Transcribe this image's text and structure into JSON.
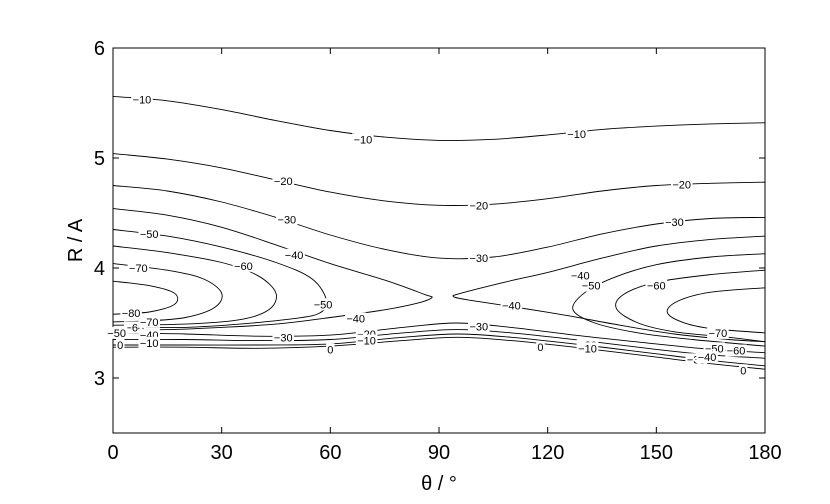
{
  "chart_data": {
    "type": "contour",
    "xlabel": "θ / °",
    "ylabel": "R / A",
    "xlim": [
      0,
      180
    ],
    "ylim": [
      2.5,
      6
    ],
    "xticks": [
      "0",
      "30",
      "60",
      "90",
      "120",
      "150",
      "180"
    ],
    "yticks": [
      "3",
      "4",
      "5",
      "6"
    ],
    "grid": false,
    "contours": [
      {
        "level": -10,
        "label": "−10",
        "segments": [
          [
            [
              0,
              5.56
            ],
            [
              15,
              5.52
            ],
            [
              30,
              5.44
            ],
            [
              45,
              5.34
            ],
            [
              60,
              5.25
            ],
            [
              75,
              5.19
            ],
            [
              90,
              5.16
            ],
            [
              105,
              5.17
            ],
            [
              120,
              5.21
            ],
            [
              135,
              5.26
            ],
            [
              150,
              5.29
            ],
            [
              165,
              5.31
            ],
            [
              180,
              5.32
            ]
          ]
        ]
      },
      {
        "level": -20,
        "label": "−20",
        "segments": [
          [
            [
              0,
              5.04
            ],
            [
              15,
              4.99
            ],
            [
              30,
              4.91
            ],
            [
              45,
              4.8
            ],
            [
              60,
              4.69
            ],
            [
              75,
              4.61
            ],
            [
              90,
              4.57
            ],
            [
              105,
              4.58
            ],
            [
              120,
              4.63
            ],
            [
              135,
              4.7
            ],
            [
              150,
              4.75
            ],
            [
              165,
              4.77
            ],
            [
              180,
              4.78
            ]
          ]
        ]
      },
      {
        "level": -30,
        "label": "−30",
        "segments": [
          [
            [
              0,
              4.75
            ],
            [
              15,
              4.7
            ],
            [
              30,
              4.6
            ],
            [
              45,
              4.46
            ],
            [
              60,
              4.3
            ],
            [
              75,
              4.17
            ],
            [
              90,
              4.09
            ],
            [
              105,
              4.1
            ],
            [
              120,
              4.19
            ],
            [
              135,
              4.31
            ],
            [
              150,
              4.4
            ],
            [
              165,
              4.45
            ],
            [
              180,
              4.46
            ]
          ]
        ]
      },
      {
        "level": -40,
        "label": "−40",
        "segments": [
          [
            [
              0,
              4.54
            ],
            [
              15,
              4.48
            ],
            [
              30,
              4.37
            ],
            [
              45,
              4.21
            ],
            [
              60,
              4.04
            ],
            [
              75,
              3.89
            ],
            [
              86,
              3.76
            ],
            [
              88,
              3.73
            ],
            [
              84,
              3.68
            ],
            [
              75,
              3.62
            ],
            [
              60,
              3.55
            ],
            [
              45,
              3.49
            ],
            [
              30,
              3.46
            ],
            [
              15,
              3.44
            ],
            [
              0,
              3.44
            ]
          ],
          [
            [
              180,
              4.29
            ],
            [
              165,
              4.26
            ],
            [
              150,
              4.2
            ],
            [
              135,
              4.09
            ],
            [
              120,
              3.96
            ],
            [
              108,
              3.87
            ],
            [
              96,
              3.77
            ],
            [
              94,
              3.74
            ],
            [
              98,
              3.71
            ],
            [
              110,
              3.65
            ],
            [
              125,
              3.57
            ],
            [
              140,
              3.48
            ],
            [
              155,
              3.4
            ],
            [
              170,
              3.35
            ],
            [
              180,
              3.33
            ]
          ]
        ]
      },
      {
        "level": -50,
        "label": "−50",
        "segments": [
          [
            [
              0,
              4.35
            ],
            [
              15,
              4.29
            ],
            [
              30,
              4.19
            ],
            [
              45,
              4.05
            ],
            [
              55,
              3.9
            ],
            [
              59,
              3.7
            ],
            [
              57,
              3.59
            ],
            [
              50,
              3.54
            ],
            [
              35,
              3.49
            ],
            [
              20,
              3.46
            ],
            [
              0,
              3.46
            ]
          ],
          [
            [
              180,
              4.13
            ],
            [
              165,
              4.1
            ],
            [
              150,
              4.03
            ],
            [
              138,
              3.91
            ],
            [
              130,
              3.77
            ],
            [
              127,
              3.62
            ],
            [
              133,
              3.5
            ],
            [
              145,
              3.41
            ],
            [
              160,
              3.35
            ],
            [
              180,
              3.29
            ]
          ]
        ]
      },
      {
        "level": -60,
        "label": "−60",
        "segments": [
          [
            [
              0,
              4.2
            ],
            [
              15,
              4.14
            ],
            [
              30,
              4.05
            ],
            [
              40,
              3.93
            ],
            [
              45,
              3.77
            ],
            [
              43,
              3.62
            ],
            [
              35,
              3.53
            ],
            [
              20,
              3.49
            ],
            [
              0,
              3.48
            ]
          ],
          [
            [
              180,
              3.98
            ],
            [
              165,
              3.94
            ],
            [
              150,
              3.87
            ],
            [
              141,
              3.76
            ],
            [
              139,
              3.63
            ],
            [
              145,
              3.5
            ],
            [
              155,
              3.42
            ],
            [
              170,
              3.37
            ],
            [
              180,
              3.33
            ]
          ]
        ]
      },
      {
        "level": -70,
        "label": "−70",
        "segments": [
          [
            [
              0,
              4.04
            ],
            [
              15,
              3.98
            ],
            [
              25,
              3.9
            ],
            [
              30,
              3.77
            ],
            [
              28,
              3.64
            ],
            [
              20,
              3.55
            ],
            [
              10,
              3.52
            ],
            [
              0,
              3.51
            ]
          ],
          [
            [
              180,
              3.82
            ],
            [
              165,
              3.78
            ],
            [
              156,
              3.7
            ],
            [
              153,
              3.6
            ],
            [
              157,
              3.51
            ],
            [
              165,
              3.45
            ],
            [
              180,
              3.41
            ]
          ]
        ]
      },
      {
        "level": -80,
        "label": "−80",
        "segments": [
          [
            [
              0,
              3.88
            ],
            [
              10,
              3.84
            ],
            [
              17,
              3.77
            ],
            [
              17,
              3.67
            ],
            [
              10,
              3.6
            ],
            [
              0,
              3.58
            ]
          ]
        ]
      },
      {
        "level": -20,
        "label": "−20",
        "segments": [
          [
            [
              0,
              3.41
            ],
            [
              20,
              3.4
            ],
            [
              40,
              3.38
            ],
            [
              60,
              3.39
            ],
            [
              80,
              3.46
            ],
            [
              95,
              3.5
            ],
            [
              110,
              3.46
            ],
            [
              130,
              3.38
            ],
            [
              150,
              3.31
            ],
            [
              165,
              3.26
            ],
            [
              180,
              3.23
            ]
          ]
        ]
      },
      {
        "level": -10,
        "label": "−10",
        "segments": [
          [
            [
              0,
              3.35
            ],
            [
              20,
              3.35
            ],
            [
              40,
              3.34
            ],
            [
              60,
              3.35
            ],
            [
              80,
              3.41
            ],
            [
              95,
              3.44
            ],
            [
              110,
              3.41
            ],
            [
              130,
              3.34
            ],
            [
              150,
              3.26
            ],
            [
              165,
              3.21
            ],
            [
              180,
              3.18
            ]
          ]
        ]
      },
      {
        "level": 0,
        "label": "0",
        "segments": [
          [
            [
              0,
              3.3
            ],
            [
              20,
              3.3
            ],
            [
              40,
              3.3
            ],
            [
              60,
              3.31
            ],
            [
              80,
              3.37
            ],
            [
              95,
              3.4
            ],
            [
              110,
              3.37
            ],
            [
              130,
              3.3
            ],
            [
              150,
              3.22
            ],
            [
              165,
              3.16
            ],
            [
              180,
              3.11
            ]
          ]
        ]
      },
      {
        "level": 0,
        "label": "",
        "segments": [
          [
            [
              0,
              3.28
            ],
            [
              20,
              3.28
            ],
            [
              40,
              3.27
            ],
            [
              60,
              3.29
            ],
            [
              80,
              3.34
            ],
            [
              95,
              3.37
            ],
            [
              110,
              3.34
            ],
            [
              130,
              3.27
            ],
            [
              150,
              3.19
            ],
            [
              165,
              3.13
            ],
            [
              180,
              3.08
            ]
          ]
        ]
      }
    ],
    "labels": [
      {
        "text": "−10",
        "x": 8,
        "y": 5.53
      },
      {
        "text": "−10",
        "x": 69,
        "y": 5.17
      },
      {
        "text": "−10",
        "x": 128,
        "y": 5.22
      },
      {
        "text": "−20",
        "x": 47,
        "y": 4.79
      },
      {
        "text": "−20",
        "x": 101,
        "y": 4.57
      },
      {
        "text": "−20",
        "x": 157,
        "y": 4.76
      },
      {
        "text": "−30",
        "x": 48,
        "y": 4.44
      },
      {
        "text": "−30",
        "x": 101,
        "y": 4.09
      },
      {
        "text": "−30",
        "x": 155,
        "y": 4.42
      },
      {
        "text": "−40",
        "x": 50,
        "y": 4.12
      },
      {
        "text": "−40",
        "x": 67,
        "y": 3.54
      },
      {
        "text": "−40",
        "x": 110,
        "y": 3.66
      },
      {
        "text": "−40",
        "x": 129,
        "y": 3.93
      },
      {
        "text": "−50",
        "x": 10,
        "y": 4.31
      },
      {
        "text": "−50",
        "x": 58,
        "y": 3.67
      },
      {
        "text": "−50",
        "x": 132,
        "y": 3.84
      },
      {
        "text": "−50",
        "x": 166,
        "y": 3.27
      },
      {
        "text": "−60",
        "x": 36,
        "y": 4.02
      },
      {
        "text": "−60",
        "x": 150,
        "y": 3.84
      },
      {
        "text": "−60",
        "x": 6,
        "y": 3.46
      },
      {
        "text": "−60",
        "x": 172,
        "y": 3.25
      },
      {
        "text": "−70",
        "x": 7,
        "y": 4.0
      },
      {
        "text": "−70",
        "x": 10,
        "y": 3.51
      },
      {
        "text": "−70",
        "x": 167,
        "y": 3.41
      },
      {
        "text": "−80",
        "x": 5,
        "y": 3.59
      },
      {
        "text": "−50",
        "x": 1,
        "y": 3.41
      },
      {
        "text": "−40",
        "x": 10,
        "y": 3.39
      },
      {
        "text": "−30",
        "x": 47,
        "y": 3.37
      },
      {
        "text": "−30",
        "x": 101,
        "y": 3.47
      },
      {
        "text": "−30",
        "x": 161,
        "y": 3.17
      },
      {
        "text": "−20",
        "x": 70,
        "y": 3.4
      },
      {
        "text": "−20",
        "x": 131,
        "y": 3.3
      },
      {
        "text": "−10",
        "x": 10,
        "y": 3.32
      },
      {
        "text": "−10",
        "x": 70,
        "y": 3.34
      },
      {
        "text": "−10",
        "x": 131,
        "y": 3.27
      },
      {
        "text": "−40",
        "x": 164,
        "y": 3.19
      },
      {
        "text": "0",
        "x": 2,
        "y": 3.3
      },
      {
        "text": "0",
        "x": 60,
        "y": 3.26
      },
      {
        "text": "0",
        "x": 118,
        "y": 3.28
      },
      {
        "text": "0",
        "x": 174,
        "y": 3.07
      }
    ]
  }
}
